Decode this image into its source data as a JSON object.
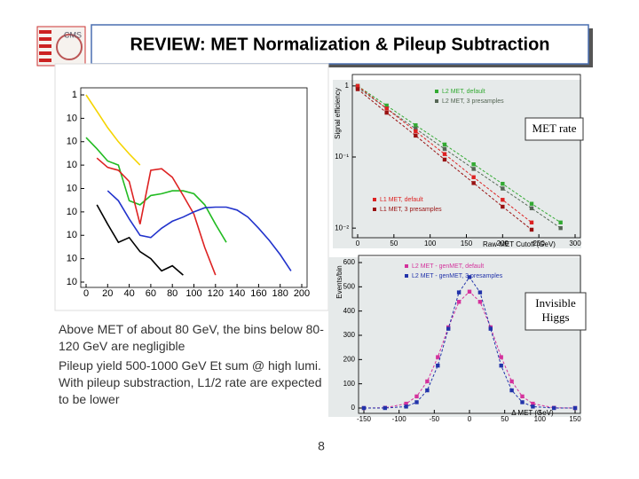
{
  "slide": {
    "title": "REVIEW: MET Normalization & Pileup Subtraction",
    "logo_text": "CMS",
    "paragraphs": [
      "Above MET of about 80 GeV, the bins below 80-120 GeV are negligible",
      "Pileup yield 500-1000 GeV Et sum @ high lumi. With pileup substraction, L1/2 rate are expected to be lower"
    ],
    "page_number": "8"
  },
  "chart_data": [
    {
      "type": "line",
      "log_y": true,
      "x": [
        0,
        10,
        20,
        30,
        40,
        50,
        60,
        70,
        80,
        90,
        100,
        110,
        120,
        130,
        140,
        150,
        160,
        170,
        180,
        190,
        200
      ],
      "xlim": [
        0,
        200
      ],
      "xticks": [
        0,
        20,
        40,
        60,
        80,
        100,
        120,
        140,
        160,
        180,
        200
      ],
      "ylim": [
        1e-08,
        1
      ],
      "yticks": [
        1,
        {
          "value": 0.1,
          "label": "10"
        },
        {
          "value": 0.01,
          "label": "10"
        },
        {
          "value": 0.001,
          "label": "10"
        },
        {
          "value": 0.0001,
          "label": "10"
        },
        {
          "value": 1e-05,
          "label": "10"
        },
        {
          "value": 1e-06,
          "label": "10"
        },
        {
          "value": 1e-07,
          "label": "10"
        },
        {
          "value": 1e-08,
          "label": "10"
        }
      ],
      "series": [
        {
          "color": "#f5d400",
          "values": [
            1,
            0.2,
            0.04,
            0.01,
            0.003,
            0.001,
            null,
            null,
            null,
            null,
            null,
            null,
            null,
            null,
            null,
            null,
            null,
            null,
            null,
            null,
            null
          ]
        },
        {
          "color": "#22bb22",
          "values": [
            0.015,
            0.005,
            0.0015,
            0.001,
            3e-05,
            2e-05,
            5e-05,
            6e-05,
            8e-05,
            8e-05,
            6e-05,
            2e-05,
            3e-06,
            5e-07,
            null,
            null,
            null,
            null,
            null,
            null,
            null
          ]
        },
        {
          "color": "#dd2222",
          "values": [
            null,
            0.002,
            0.0008,
            0.0006,
            0.0002,
            3e-06,
            0.0006,
            0.0007,
            0.0003,
            5e-05,
            8e-06,
            3e-07,
            2e-08,
            null,
            null,
            null,
            null,
            null,
            null,
            null,
            null
          ]
        },
        {
          "color": "#2233cc",
          "values": [
            null,
            null,
            8e-05,
            3e-05,
            5e-06,
            1e-06,
            8e-07,
            2e-06,
            4e-06,
            6e-06,
            1e-05,
            1.5e-05,
            1.6e-05,
            1.6e-05,
            1.2e-05,
            6e-06,
            2e-06,
            6e-07,
            1.5e-07,
            3e-08,
            null
          ]
        },
        {
          "color": "#000000",
          "values": [
            null,
            2e-05,
            3e-06,
            5e-07,
            8e-07,
            2e-07,
            1e-07,
            3e-08,
            5e-08,
            2e-08,
            null,
            null,
            null,
            null,
            null,
            null,
            null,
            null,
            null,
            null,
            null
          ]
        }
      ]
    },
    {
      "type": "line",
      "log_y": true,
      "y_label": "Signal efficiency",
      "x_label": "Raw MET Cutoff (GeV)",
      "annotation": "MET rate",
      "x": [
        0,
        40,
        80,
        120,
        160,
        200,
        240,
        280
      ],
      "xlim": [
        0,
        300
      ],
      "xticks": [
        0,
        50,
        100,
        150,
        200,
        250,
        300
      ],
      "ylim": [
        0.0087,
        1.15
      ],
      "yticks": [
        1,
        {
          "value": 0.1,
          "label": "10⁻¹"
        },
        {
          "value": 0.01,
          "label": "10⁻²"
        }
      ],
      "series": [
        {
          "name": "L2 MET, default",
          "color": "#33aa33",
          "values": [
            1,
            0.53,
            0.28,
            0.15,
            0.079,
            0.042,
            0.022,
            0.012
          ]
        },
        {
          "name": "L2 MET, 3 presamples",
          "color": "#556655",
          "values": [
            0.95,
            0.48,
            0.25,
            0.13,
            0.068,
            0.036,
            0.019,
            0.01
          ]
        },
        {
          "name": "L1 MET, default",
          "color": "#dd2222",
          "values": [
            1,
            0.48,
            0.23,
            0.11,
            0.052,
            0.025,
            0.012,
            null
          ]
        },
        {
          "name": "L1 MET, 3 presamples",
          "color": "#991111",
          "values": [
            0.9,
            0.42,
            0.2,
            0.092,
            0.043,
            0.02,
            0.0095,
            null
          ]
        }
      ]
    },
    {
      "type": "line",
      "log_y": false,
      "y_label": "Events/bin",
      "x_label": "Δ MET (GeV)",
      "annotation": "Invisible Higgs",
      "x": [
        -150,
        -120,
        -90,
        -75,
        -60,
        -45,
        -30,
        -15,
        0,
        15,
        30,
        45,
        60,
        75,
        90,
        120,
        150
      ],
      "xlim": [
        -150,
        150
      ],
      "xticks": [
        -150,
        -100,
        -50,
        0,
        50,
        100,
        150
      ],
      "ylim": [
        0,
        600
      ],
      "yticks": [
        0,
        100,
        200,
        300,
        400,
        500,
        600
      ],
      "series": [
        {
          "name": "L2 MET - genMET, default",
          "color": "#d4329c",
          "values": [
            0,
            1,
            18,
            48,
            110,
            210,
            333,
            438,
            480,
            438,
            333,
            210,
            110,
            48,
            18,
            1,
            0
          ]
        },
        {
          "name": "L2 MET - genMET, 3 presamples",
          "color": "#2233aa",
          "values": [
            0,
            0,
            6,
            24,
            73,
            175,
            327,
            477,
            540,
            477,
            327,
            175,
            73,
            24,
            6,
            0,
            0
          ]
        }
      ]
    }
  ]
}
